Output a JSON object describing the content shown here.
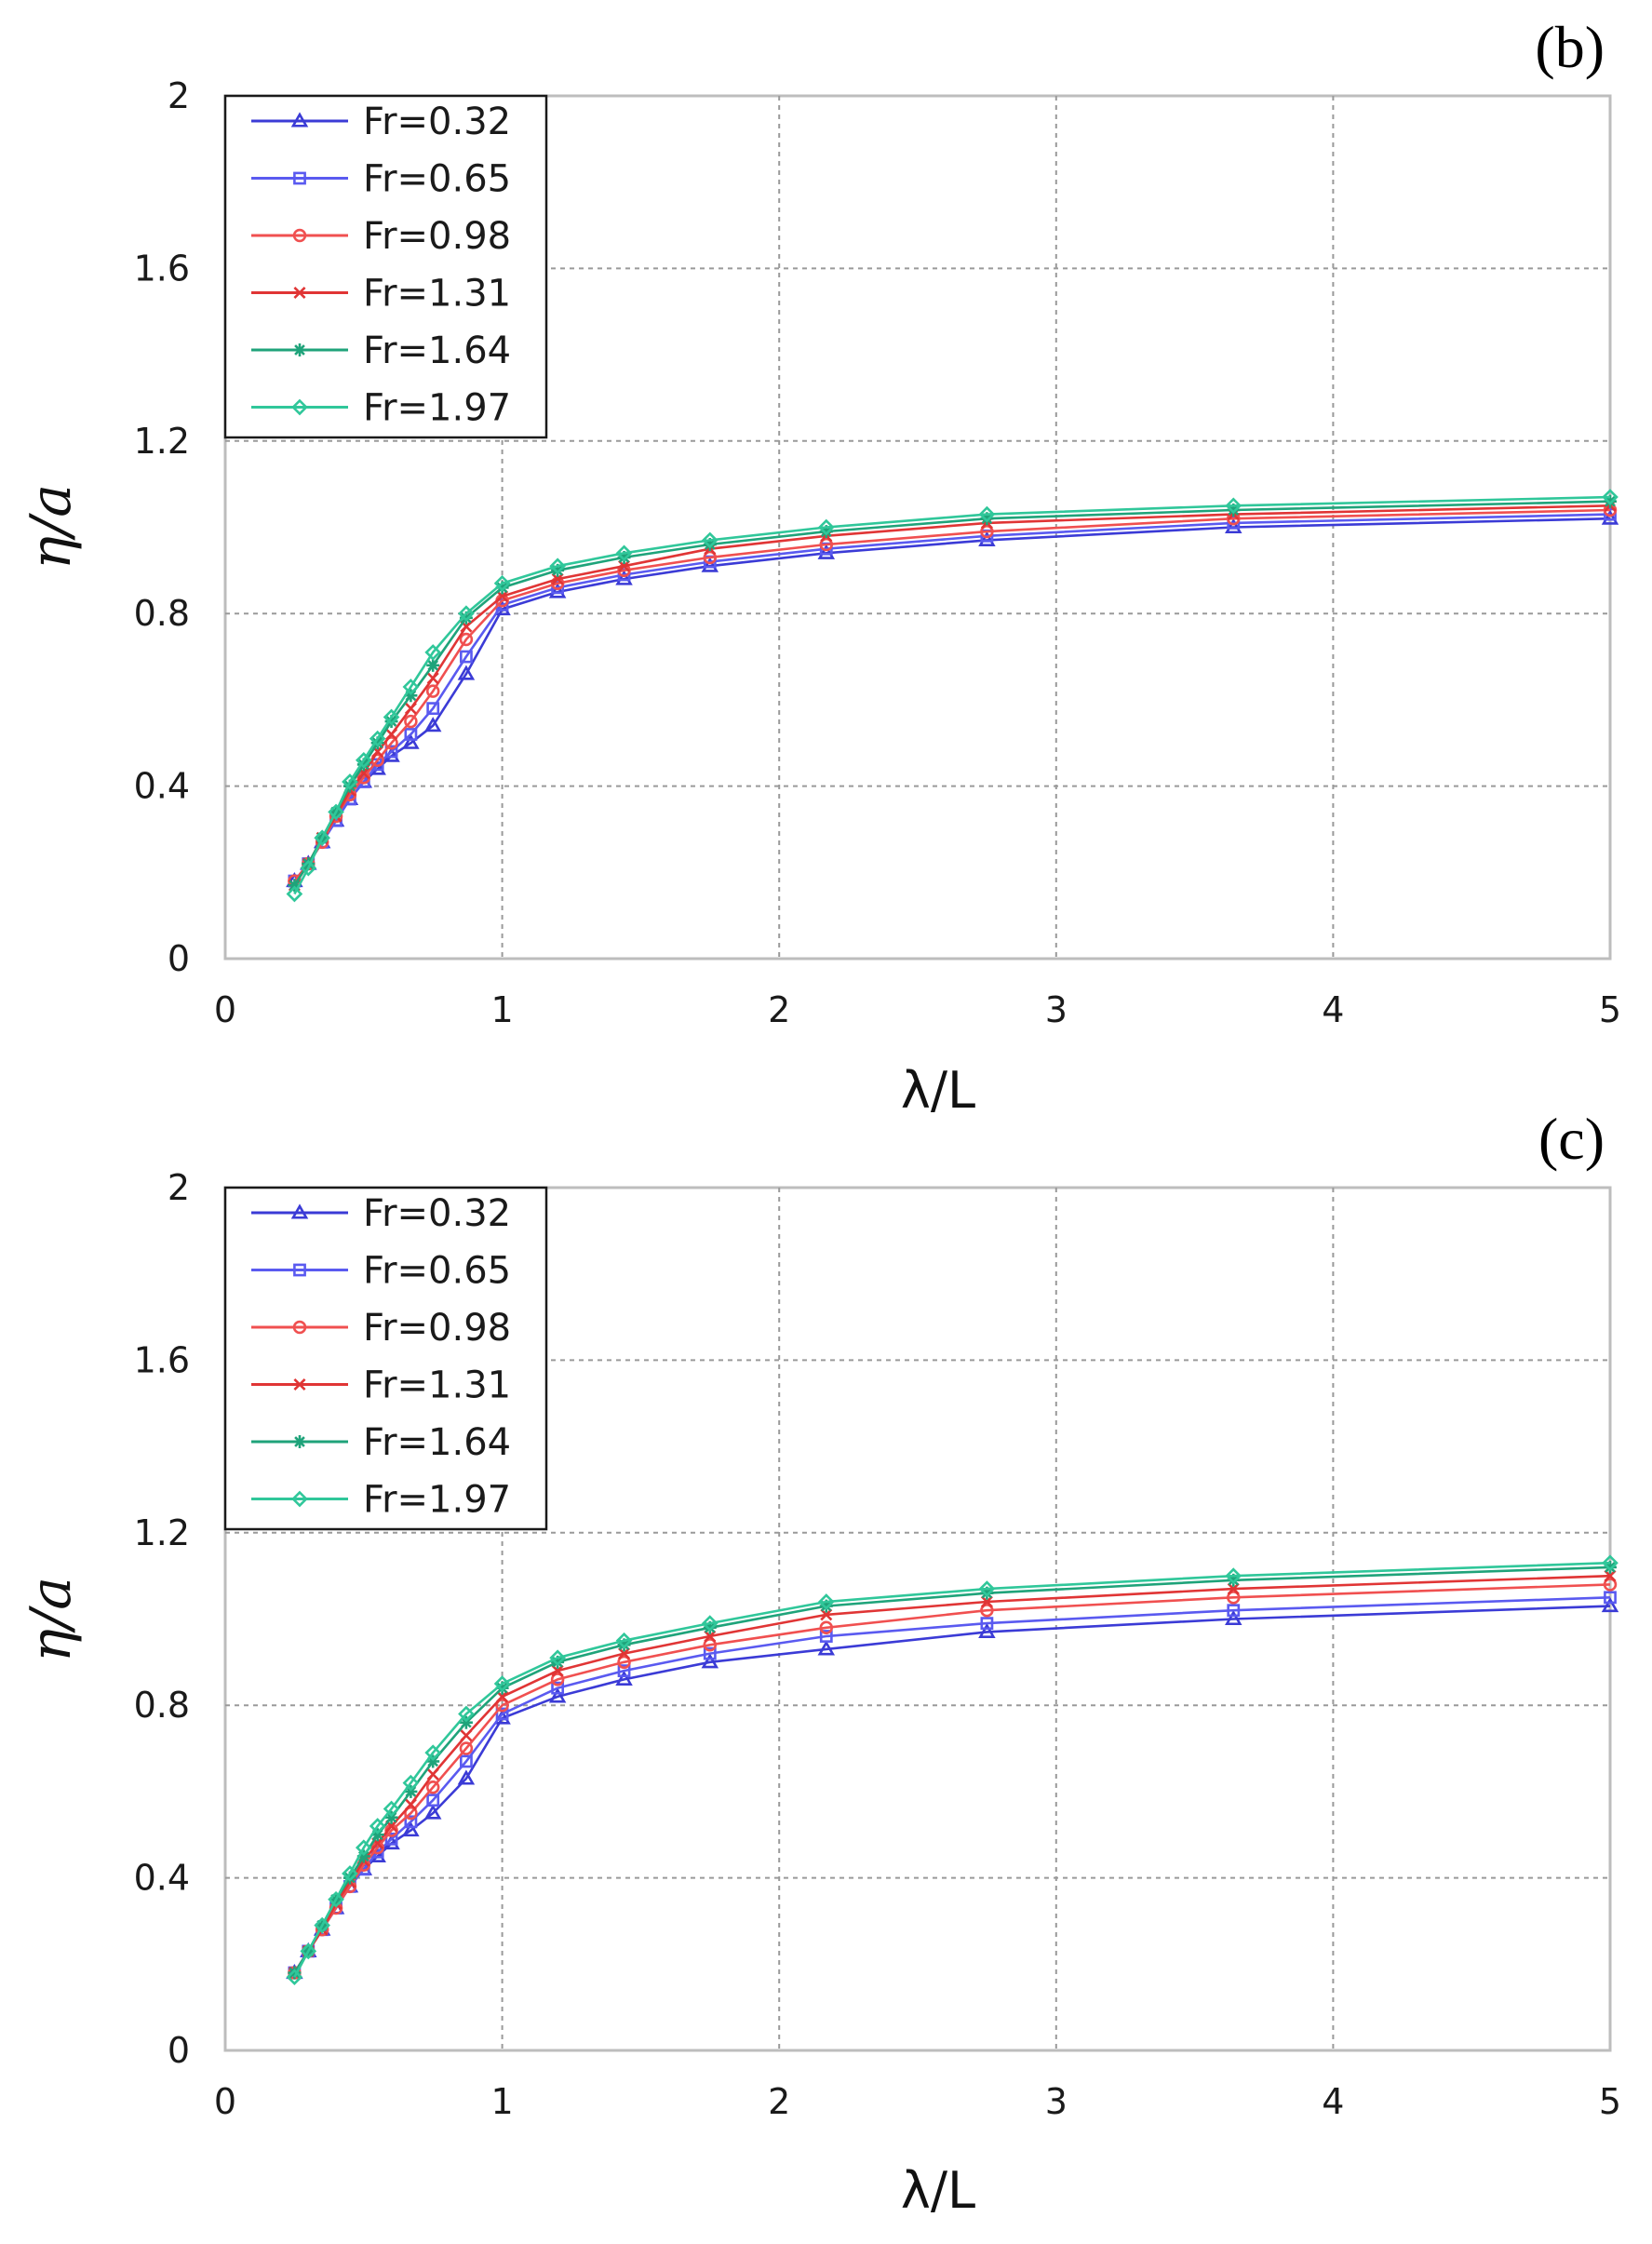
{
  "colors": {
    "Fr=0.32": "#3b3bd6",
    "Fr=0.65": "#5a5af0",
    "Fr=0.98": "#f05050",
    "Fr=1.31": "#e03535",
    "Fr=1.64": "#1fa37a",
    "Fr=1.97": "#30c79a"
  },
  "chart_data": [
    {
      "type": "line",
      "panel_label": "(b)",
      "xlabel": "λ/L",
      "ylabel": "η/a",
      "xlim": [
        0,
        5
      ],
      "ylim": [
        0,
        2
      ],
      "xticks": [
        "0",
        "1",
        "2",
        "3",
        "4",
        "5"
      ],
      "yticks": [
        "0",
        "0.4",
        "0.8",
        "1.2",
        "1.6",
        "2"
      ],
      "grid": true,
      "legend_position": "top-left",
      "x": [
        0.25,
        0.3,
        0.35,
        0.4,
        0.45,
        0.5,
        0.55,
        0.6,
        0.67,
        0.75,
        0.87,
        1.0,
        1.2,
        1.44,
        1.75,
        2.17,
        2.75,
        3.64,
        5.0
      ],
      "series": [
        {
          "name": "Fr=0.32",
          "marker": "triangle",
          "values": [
            0.18,
            0.22,
            0.27,
            0.32,
            0.37,
            0.41,
            0.44,
            0.47,
            0.5,
            0.54,
            0.66,
            0.81,
            0.85,
            0.88,
            0.91,
            0.94,
            0.97,
            1.0,
            1.02
          ]
        },
        {
          "name": "Fr=0.65",
          "marker": "square",
          "values": [
            0.18,
            0.22,
            0.27,
            0.32,
            0.37,
            0.41,
            0.45,
            0.48,
            0.52,
            0.58,
            0.7,
            0.82,
            0.86,
            0.89,
            0.92,
            0.95,
            0.98,
            1.01,
            1.03
          ]
        },
        {
          "name": "Fr=0.98",
          "marker": "circle",
          "values": [
            0.18,
            0.22,
            0.27,
            0.33,
            0.38,
            0.42,
            0.46,
            0.5,
            0.55,
            0.62,
            0.74,
            0.83,
            0.87,
            0.9,
            0.93,
            0.96,
            0.99,
            1.02,
            1.04
          ]
        },
        {
          "name": "Fr=1.31",
          "marker": "x",
          "values": [
            0.17,
            0.22,
            0.28,
            0.33,
            0.39,
            0.43,
            0.48,
            0.52,
            0.58,
            0.65,
            0.77,
            0.84,
            0.88,
            0.91,
            0.95,
            0.98,
            1.01,
            1.03,
            1.05
          ]
        },
        {
          "name": "Fr=1.64",
          "marker": "star",
          "values": [
            0.17,
            0.22,
            0.28,
            0.34,
            0.4,
            0.45,
            0.5,
            0.55,
            0.61,
            0.68,
            0.79,
            0.86,
            0.9,
            0.93,
            0.96,
            0.99,
            1.02,
            1.04,
            1.06
          ]
        },
        {
          "name": "Fr=1.97",
          "marker": "diamond",
          "values": [
            0.15,
            0.21,
            0.28,
            0.34,
            0.41,
            0.46,
            0.51,
            0.56,
            0.63,
            0.71,
            0.8,
            0.87,
            0.91,
            0.94,
            0.97,
            1.0,
            1.03,
            1.05,
            1.07
          ]
        }
      ]
    },
    {
      "type": "line",
      "panel_label": "(c)",
      "xlabel": "λ/L",
      "ylabel": "η/a",
      "xlim": [
        0,
        5
      ],
      "ylim": [
        0,
        2
      ],
      "xticks": [
        "0",
        "1",
        "2",
        "3",
        "4",
        "5"
      ],
      "yticks": [
        "0",
        "0.4",
        "0.8",
        "1.2",
        "1.6",
        "2"
      ],
      "grid": true,
      "legend_position": "top-left",
      "x": [
        0.25,
        0.3,
        0.35,
        0.4,
        0.45,
        0.5,
        0.55,
        0.6,
        0.67,
        0.75,
        0.87,
        1.0,
        1.2,
        1.44,
        1.75,
        2.17,
        2.75,
        3.64,
        5.0
      ],
      "series": [
        {
          "name": "Fr=0.32",
          "marker": "triangle",
          "values": [
            0.18,
            0.23,
            0.28,
            0.33,
            0.38,
            0.42,
            0.45,
            0.48,
            0.51,
            0.55,
            0.63,
            0.77,
            0.82,
            0.86,
            0.9,
            0.93,
            0.97,
            1.0,
            1.03
          ]
        },
        {
          "name": "Fr=0.65",
          "marker": "square",
          "values": [
            0.18,
            0.23,
            0.28,
            0.33,
            0.38,
            0.42,
            0.46,
            0.49,
            0.53,
            0.58,
            0.67,
            0.78,
            0.84,
            0.88,
            0.92,
            0.96,
            0.99,
            1.02,
            1.05
          ]
        },
        {
          "name": "Fr=0.98",
          "marker": "circle",
          "values": [
            0.18,
            0.23,
            0.28,
            0.33,
            0.38,
            0.43,
            0.47,
            0.51,
            0.55,
            0.61,
            0.7,
            0.8,
            0.86,
            0.9,
            0.94,
            0.98,
            1.02,
            1.05,
            1.08
          ]
        },
        {
          "name": "Fr=1.31",
          "marker": "x",
          "values": [
            0.18,
            0.23,
            0.28,
            0.34,
            0.39,
            0.44,
            0.48,
            0.52,
            0.57,
            0.64,
            0.73,
            0.82,
            0.88,
            0.92,
            0.96,
            1.01,
            1.04,
            1.07,
            1.1
          ]
        },
        {
          "name": "Fr=1.64",
          "marker": "star",
          "values": [
            0.18,
            0.23,
            0.29,
            0.35,
            0.4,
            0.45,
            0.5,
            0.54,
            0.6,
            0.67,
            0.76,
            0.84,
            0.9,
            0.94,
            0.98,
            1.03,
            1.06,
            1.09,
            1.12
          ]
        },
        {
          "name": "Fr=1.97",
          "marker": "diamond",
          "values": [
            0.17,
            0.23,
            0.29,
            0.35,
            0.41,
            0.47,
            0.52,
            0.56,
            0.62,
            0.69,
            0.78,
            0.85,
            0.91,
            0.95,
            0.99,
            1.04,
            1.07,
            1.1,
            1.13
          ]
        }
      ]
    }
  ]
}
